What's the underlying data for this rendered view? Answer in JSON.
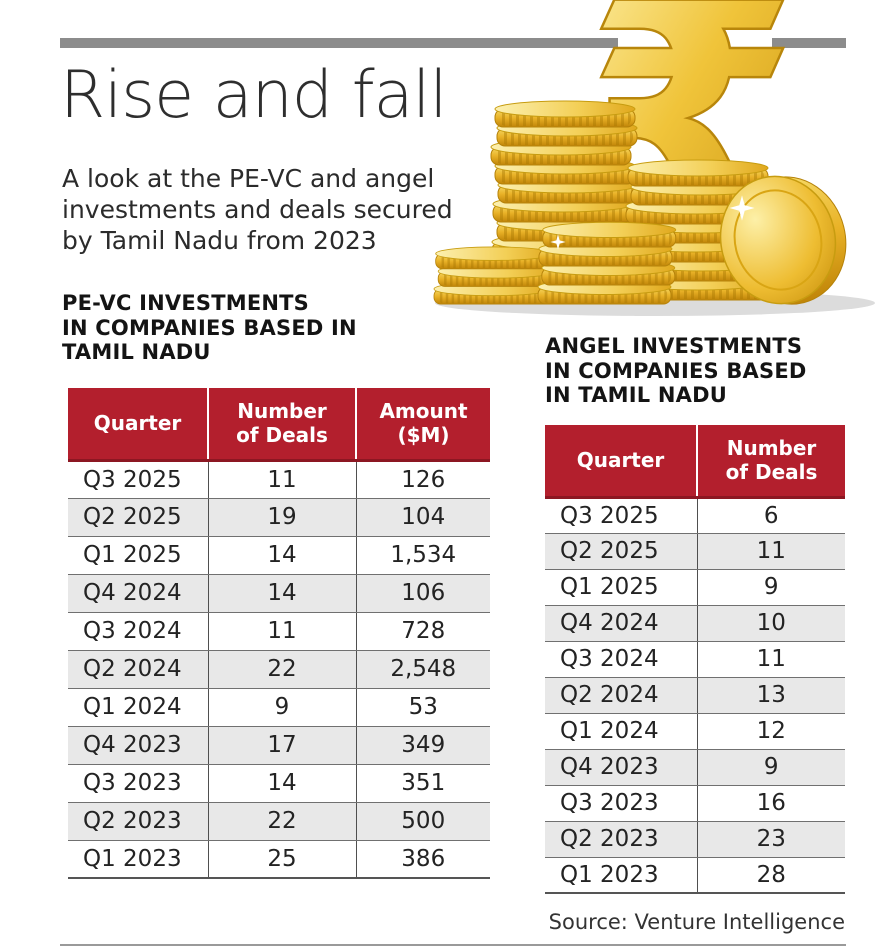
{
  "header": {
    "title": "Rise and fall",
    "subtitle": "A look at the PE-VC and angel\ninvestments and deals secured\nby Tamil Nadu from 2023"
  },
  "pevc": {
    "heading": "PE-VC INVESTMENTS\nIN COMPANIES BASED IN\nTAMIL NADU",
    "columns": [
      "Quarter",
      "Number\nof Deals",
      "Amount\n($M)"
    ],
    "rows": [
      [
        "Q3 2025",
        "11",
        "126"
      ],
      [
        "Q2 2025",
        "19",
        "104"
      ],
      [
        "Q1 2025",
        "14",
        "1,534"
      ],
      [
        "Q4 2024",
        "14",
        "106"
      ],
      [
        "Q3 2024",
        "11",
        "728"
      ],
      [
        "Q2 2024",
        "22",
        "2,548"
      ],
      [
        "Q1 2024",
        "9",
        "53"
      ],
      [
        "Q4 2023",
        "17",
        "349"
      ],
      [
        "Q3 2023",
        "14",
        "351"
      ],
      [
        "Q2 2023",
        "22",
        "500"
      ],
      [
        "Q1 2023",
        "25",
        "386"
      ]
    ]
  },
  "angel": {
    "heading": "ANGEL INVESTMENTS\nIN COMPANIES BASED\nIN TAMIL NADU",
    "columns": [
      "Quarter",
      "Number\nof Deals"
    ],
    "rows": [
      [
        "Q3 2025",
        "6"
      ],
      [
        "Q2 2025",
        "11"
      ],
      [
        "Q1 2025",
        "9"
      ],
      [
        "Q4 2024",
        "10"
      ],
      [
        "Q3 2024",
        "11"
      ],
      [
        "Q2 2024",
        "13"
      ],
      [
        "Q1 2024",
        "12"
      ],
      [
        "Q4 2023",
        "9"
      ],
      [
        "Q3 2023",
        "16"
      ],
      [
        "Q2 2023",
        "23"
      ],
      [
        "Q1 2023",
        "28"
      ]
    ]
  },
  "source": "Source: Venture Intelligence",
  "illustration": {
    "name": "gold-coin-stacks-with-rupee-symbol",
    "rupee_glyph": "₹"
  },
  "colors": {
    "accent_red": "#b31f2d",
    "row_alt_gray": "#e8e8e8",
    "bar_gray": "#8c8c8c",
    "gold": "#e8b931"
  },
  "chart_data": [
    {
      "type": "table",
      "title": "PE-VC INVESTMENTS IN COMPANIES BASED IN TAMIL NADU",
      "columns": [
        "Quarter",
        "Number of Deals",
        "Amount ($M)"
      ],
      "categories": [
        "Q3 2025",
        "Q2 2025",
        "Q1 2025",
        "Q4 2024",
        "Q3 2024",
        "Q2 2024",
        "Q1 2024",
        "Q4 2023",
        "Q3 2023",
        "Q2 2023",
        "Q1 2023"
      ],
      "series": [
        {
          "name": "Number of Deals",
          "values": [
            11,
            19,
            14,
            14,
            11,
            22,
            9,
            17,
            14,
            22,
            25
          ]
        },
        {
          "name": "Amount ($M)",
          "values": [
            126,
            104,
            1534,
            106,
            728,
            2548,
            53,
            349,
            351,
            500,
            386
          ]
        }
      ]
    },
    {
      "type": "table",
      "title": "ANGEL INVESTMENTS IN COMPANIES BASED IN TAMIL NADU",
      "columns": [
        "Quarter",
        "Number of Deals"
      ],
      "categories": [
        "Q3 2025",
        "Q2 2025",
        "Q1 2025",
        "Q4 2024",
        "Q3 2024",
        "Q2 2024",
        "Q1 2024",
        "Q4 2023",
        "Q3 2023",
        "Q2 2023",
        "Q1 2023"
      ],
      "series": [
        {
          "name": "Number of Deals",
          "values": [
            6,
            11,
            9,
            10,
            11,
            13,
            12,
            9,
            16,
            23,
            28
          ]
        }
      ]
    }
  ]
}
